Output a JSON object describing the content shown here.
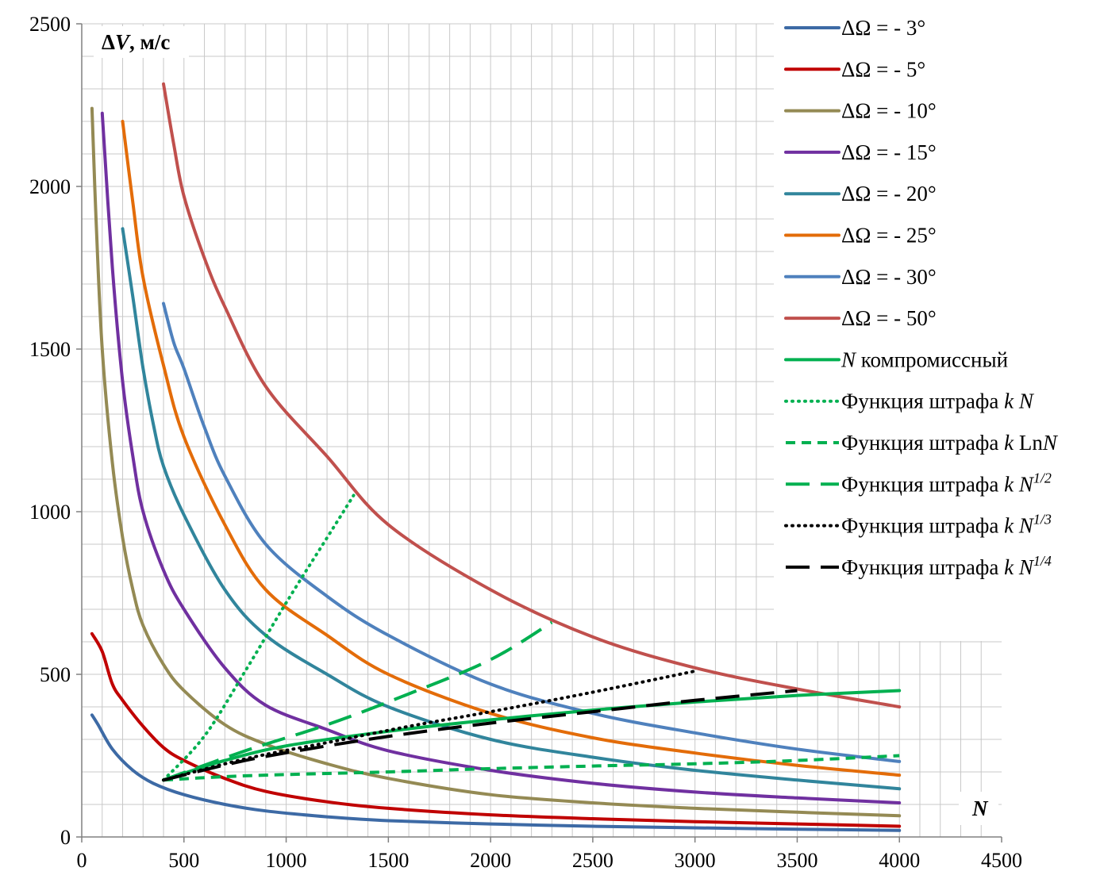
{
  "chart_data": {
    "type": "line",
    "title": "",
    "ylabel": "ΔV, м/с",
    "xlabel": "N",
    "xlim": [
      0,
      4500
    ],
    "ylim": [
      0,
      2500
    ],
    "x_ticks": [
      0,
      500,
      1000,
      1500,
      2000,
      2500,
      3000,
      3500,
      4000,
      4500
    ],
    "y_ticks": [
      0,
      500,
      1000,
      1500,
      2000,
      2500
    ],
    "grid": true,
    "legend_position": "right",
    "series": [
      {
        "name": "ΔΩ = - 3°",
        "color": "#3D6AA5",
        "dash": "solid",
        "points": [
          [
            50,
            375
          ],
          [
            80,
            345
          ],
          [
            150,
            270
          ],
          [
            250,
            205
          ],
          [
            350,
            165
          ],
          [
            500,
            130
          ],
          [
            700,
            100
          ],
          [
            900,
            80
          ],
          [
            1200,
            62
          ],
          [
            1500,
            50
          ],
          [
            2000,
            40
          ],
          [
            2500,
            33
          ],
          [
            3000,
            28
          ],
          [
            3500,
            24
          ],
          [
            4000,
            20
          ]
        ]
      },
      {
        "name": "ΔΩ = - 5°",
        "color": "#C00000",
        "dash": "solid",
        "points": [
          [
            50,
            625
          ],
          [
            100,
            570
          ],
          [
            150,
            470
          ],
          [
            200,
            420
          ],
          [
            300,
            340
          ],
          [
            400,
            275
          ],
          [
            500,
            235
          ],
          [
            700,
            180
          ],
          [
            900,
            140
          ],
          [
            1200,
            108
          ],
          [
            1500,
            88
          ],
          [
            2000,
            68
          ],
          [
            2500,
            56
          ],
          [
            3000,
            47
          ],
          [
            3500,
            40
          ],
          [
            4000,
            33
          ]
        ]
      },
      {
        "name": "ΔΩ = - 10°",
        "color": "#948A54",
        "dash": "solid",
        "points": [
          [
            50,
            2240
          ],
          [
            70,
            1900
          ],
          [
            100,
            1500
          ],
          [
            150,
            1150
          ],
          [
            200,
            920
          ],
          [
            250,
            760
          ],
          [
            300,
            650
          ],
          [
            400,
            530
          ],
          [
            500,
            450
          ],
          [
            700,
            345
          ],
          [
            900,
            285
          ],
          [
            1200,
            225
          ],
          [
            1500,
            180
          ],
          [
            2000,
            130
          ],
          [
            2500,
            105
          ],
          [
            3000,
            88
          ],
          [
            3500,
            76
          ],
          [
            4000,
            65
          ]
        ]
      },
      {
        "name": "ΔΩ = - 15°",
        "color": "#7030A0",
        "dash": "solid",
        "points": [
          [
            100,
            2225
          ],
          [
            150,
            1750
          ],
          [
            200,
            1400
          ],
          [
            250,
            1170
          ],
          [
            300,
            1000
          ],
          [
            400,
            820
          ],
          [
            500,
            700
          ],
          [
            700,
            520
          ],
          [
            900,
            405
          ],
          [
            1200,
            330
          ],
          [
            1500,
            265
          ],
          [
            2000,
            205
          ],
          [
            2500,
            165
          ],
          [
            3000,
            138
          ],
          [
            3500,
            120
          ],
          [
            4000,
            105
          ]
        ]
      },
      {
        "name": "ΔΩ = - 20°",
        "color": "#31859C",
        "dash": "solid",
        "points": [
          [
            200,
            1870
          ],
          [
            250,
            1660
          ],
          [
            300,
            1440
          ],
          [
            350,
            1270
          ],
          [
            400,
            1140
          ],
          [
            500,
            990
          ],
          [
            700,
            760
          ],
          [
            900,
            620
          ],
          [
            1200,
            500
          ],
          [
            1500,
            400
          ],
          [
            2000,
            300
          ],
          [
            2500,
            245
          ],
          [
            3000,
            205
          ],
          [
            3500,
            175
          ],
          [
            4000,
            148
          ]
        ]
      },
      {
        "name": "ΔΩ = - 25°",
        "color": "#E36C09",
        "dash": "solid",
        "points": [
          [
            200,
            2200
          ],
          [
            250,
            1950
          ],
          [
            300,
            1720
          ],
          [
            400,
            1450
          ],
          [
            500,
            1230
          ],
          [
            700,
            960
          ],
          [
            900,
            760
          ],
          [
            1200,
            620
          ],
          [
            1500,
            500
          ],
          [
            2000,
            380
          ],
          [
            2500,
            305
          ],
          [
            3000,
            258
          ],
          [
            3500,
            220
          ],
          [
            4000,
            190
          ]
        ]
      },
      {
        "name": "ΔΩ = - 30°",
        "color": "#4F81BD",
        "dash": "solid",
        "points": [
          [
            400,
            1640
          ],
          [
            450,
            1520
          ],
          [
            500,
            1440
          ],
          [
            600,
            1260
          ],
          [
            700,
            1110
          ],
          [
            900,
            900
          ],
          [
            1200,
            740
          ],
          [
            1500,
            620
          ],
          [
            2000,
            470
          ],
          [
            2500,
            380
          ],
          [
            3000,
            320
          ],
          [
            3500,
            270
          ],
          [
            4000,
            232
          ]
        ]
      },
      {
        "name": "ΔΩ = - 50°",
        "color": "#C0504D",
        "dash": "solid",
        "points": [
          [
            400,
            2315
          ],
          [
            450,
            2130
          ],
          [
            500,
            1970
          ],
          [
            600,
            1780
          ],
          [
            700,
            1630
          ],
          [
            900,
            1385
          ],
          [
            1200,
            1170
          ],
          [
            1500,
            960
          ],
          [
            2000,
            760
          ],
          [
            2500,
            615
          ],
          [
            3000,
            520
          ],
          [
            3500,
            455
          ],
          [
            4000,
            400
          ]
        ]
      },
      {
        "name": "N компромиссный",
        "color": "#00B050",
        "dash": "solid",
        "points": [
          [
            400,
            175
          ],
          [
            700,
            235
          ],
          [
            1000,
            280
          ],
          [
            1500,
            325
          ],
          [
            2000,
            360
          ],
          [
            2500,
            390
          ],
          [
            3000,
            415
          ],
          [
            3500,
            435
          ],
          [
            4000,
            450
          ]
        ]
      },
      {
        "name": "Функция штрафа k N",
        "color": "#00B050",
        "dash": "dot",
        "points": [
          [
            400,
            175
          ],
          [
            600,
            310
          ],
          [
            800,
            510
          ],
          [
            1000,
            720
          ],
          [
            1200,
            920
          ],
          [
            1330,
            1050
          ]
        ]
      },
      {
        "name": "Функция штрафа k LnN",
        "color": "#00B050",
        "dash": "dash",
        "points": [
          [
            400,
            175
          ],
          [
            800,
            188
          ],
          [
            1500,
            200
          ],
          [
            2000,
            210
          ],
          [
            2500,
            218
          ],
          [
            3000,
            225
          ],
          [
            3500,
            235
          ],
          [
            4000,
            250
          ]
        ]
      },
      {
        "name": "Функция штрафа k N1/2",
        "color": "#00B050",
        "dash": "longdash",
        "points": [
          [
            400,
            175
          ],
          [
            800,
            265
          ],
          [
            1200,
            345
          ],
          [
            1600,
            440
          ],
          [
            2000,
            545
          ],
          [
            2300,
            660
          ]
        ]
      },
      {
        "name": "Функция штрафа k N1/3",
        "color": "#000000",
        "dash": "dot",
        "points": [
          [
            400,
            175
          ],
          [
            800,
            240
          ],
          [
            1200,
            290
          ],
          [
            1600,
            340
          ],
          [
            2000,
            385
          ],
          [
            2500,
            445
          ],
          [
            3000,
            510
          ]
        ]
      },
      {
        "name": "Функция штрафа k N1/4",
        "color": "#000000",
        "dash": "longdash",
        "points": [
          [
            400,
            175
          ],
          [
            800,
            235
          ],
          [
            1200,
            280
          ],
          [
            1600,
            318
          ],
          [
            2000,
            350
          ],
          [
            2500,
            385
          ],
          [
            3000,
            420
          ],
          [
            3500,
            450
          ]
        ]
      }
    ],
    "legend": [
      {
        "main": "ΔΩ = - 3°"
      },
      {
        "main": "ΔΩ = - 5°"
      },
      {
        "main": "ΔΩ = - 10°"
      },
      {
        "main": "ΔΩ = - 15°"
      },
      {
        "main": "ΔΩ = - 20°"
      },
      {
        "main": "ΔΩ = - 25°"
      },
      {
        "main": "ΔΩ = - 30°"
      },
      {
        "main": "ΔΩ = - 50°"
      },
      {
        "italic": "N",
        "main": " компромиссный"
      },
      {
        "main": "Функция штрафа ",
        "italic": "k N"
      },
      {
        "main": "Функция штрафа ",
        "italic": "k ",
        "main2": "Ln",
        "italic2": "N"
      },
      {
        "main": "Функция штрафа ",
        "italic": "k N",
        "sup": "1/2"
      },
      {
        "main": "Функция штрафа ",
        "italic": "k N",
        "sup": "1/3"
      },
      {
        "main": "Функция штрафа ",
        "italic": "k N",
        "sup": "1/4"
      }
    ]
  }
}
